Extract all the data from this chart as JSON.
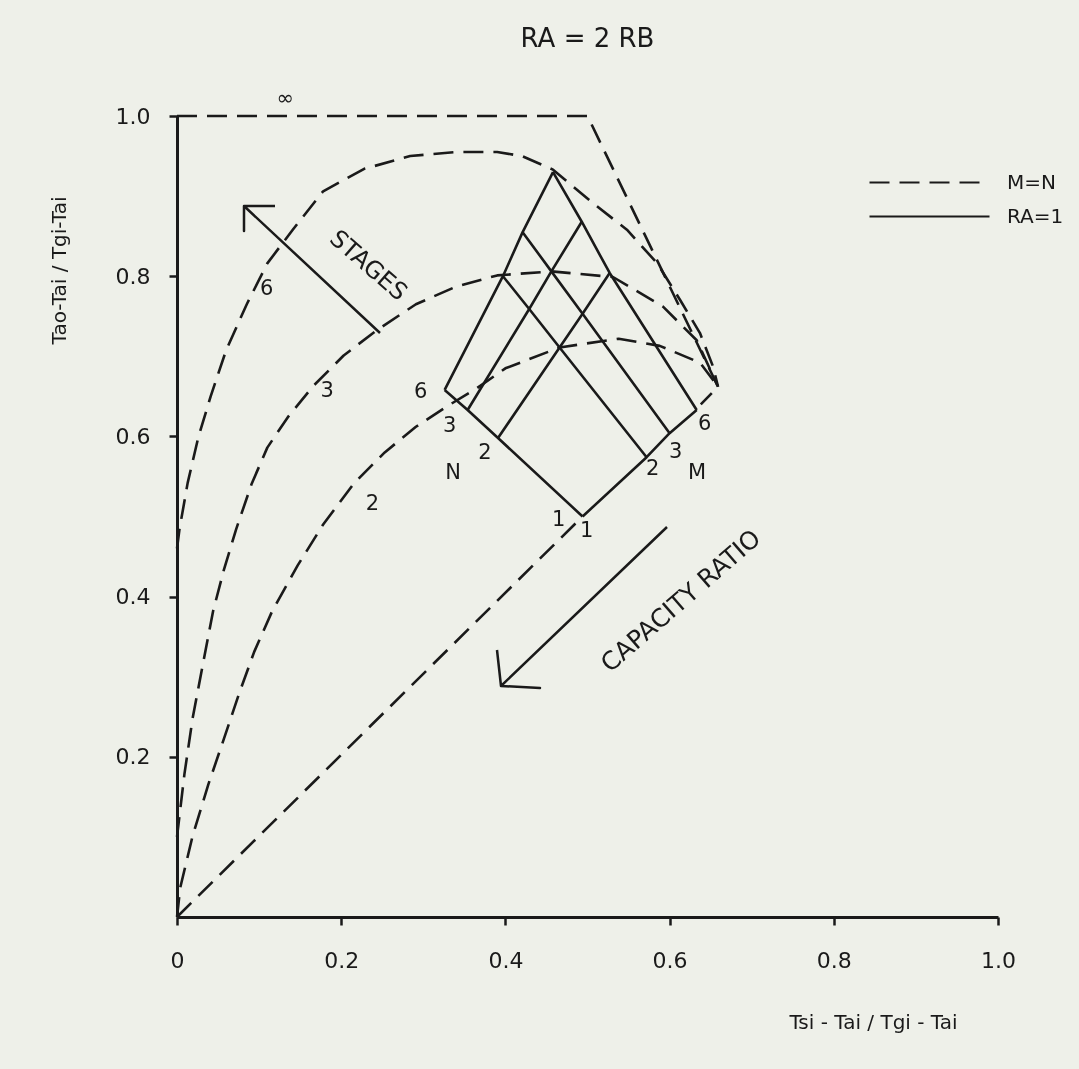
{
  "chart_data": {
    "type": "line",
    "title": "RA = 2 RB",
    "xlabel": "Tsi - Tai / Tgi - Tai",
    "ylabel": "Tao-Tai / Tgi-Tai",
    "xlim": [
      0,
      1.0
    ],
    "ylim": [
      0,
      1.0
    ],
    "xticks": [
      0,
      0.2,
      0.4,
      0.6,
      0.8,
      {
        "value": 1.0,
        "label": "1.0"
      }
    ],
    "yticks": [
      0.2,
      0.4,
      0.6,
      0.8,
      {
        "value": 1.0,
        "label": "1.0"
      }
    ],
    "legend": "top right",
    "series": [
      {
        "name": "M=N",
        "color": "#1a1a1a",
        "line_style": "dashed",
        "x": [
          0,
          0.5,
          0.659,
          0.638
        ],
        "values": [
          1.0,
          1.0,
          0.662,
          0.64
        ]
      },
      {
        "color": "#1a1a1a",
        "line_style": "dashed",
        "x": [
          0,
          0.003,
          0.013,
          0.026,
          0.041,
          0.06,
          0.085,
          0.11,
          0.141,
          0.178,
          0.228,
          0.284,
          0.34,
          0.39,
          0.42,
          0.458,
          0.507,
          0.548,
          0.585,
          0.613,
          0.637,
          0.653,
          0.659
        ],
        "values": [
          0.46,
          0.484,
          0.542,
          0.599,
          0.65,
          0.708,
          0.765,
          0.816,
          0.858,
          0.906,
          0.934,
          0.95,
          0.955,
          0.955,
          0.95,
          0.933,
          0.891,
          0.858,
          0.816,
          0.77,
          0.729,
          0.687,
          0.662
        ]
      },
      {
        "color": "#1a1a1a",
        "line_style": "dashed",
        "x": [
          0,
          0.009,
          0.019,
          0.032,
          0.044,
          0.057,
          0.072,
          0.091,
          0.11,
          0.135,
          0.166,
          0.203,
          0.244,
          0.291,
          0.34,
          0.39,
          0.456,
          0.531,
          0.592,
          0.633,
          0.659
        ],
        "values": [
          0.1,
          0.178,
          0.248,
          0.318,
          0.382,
          0.433,
          0.484,
          0.541,
          0.586,
          0.624,
          0.663,
          0.701,
          0.733,
          0.765,
          0.787,
          0.801,
          0.806,
          0.799,
          0.762,
          0.72,
          0.662
        ]
      },
      {
        "color": "#1a1a1a",
        "line_style": "dashed",
        "x": [
          0,
          0.004,
          0.019,
          0.038,
          0.057,
          0.076,
          0.094,
          0.116,
          0.147,
          0.178,
          0.216,
          0.253,
          0.291,
          0.328,
          0.365,
          0.4,
          0.466,
          0.538,
          0.588,
          0.637,
          0.659
        ],
        "values": [
          0,
          0.037,
          0.101,
          0.165,
          0.222,
          0.28,
          0.331,
          0.382,
          0.439,
          0.49,
          0.542,
          0.58,
          0.612,
          0.637,
          0.66,
          0.685,
          0.711,
          0.722,
          0.713,
          0.692,
          0.662
        ]
      },
      {
        "color": "#1a1a1a",
        "line_style": "dashed",
        "x": [
          0,
          0.494
        ],
        "values": [
          0,
          0.5
        ]
      },
      {
        "name": "RA=1",
        "color": "#1a1a1a",
        "line_style": "solid",
        "x": [
          0.494,
          0.572,
          0.6,
          0.633
        ],
        "values": [
          0.5,
          0.574,
          0.604,
          0.633
        ]
      },
      {
        "color": "#1a1a1a",
        "line_style": "solid",
        "x": [
          0.391,
          0.466,
          0.494,
          0.527
        ],
        "values": [
          0.598,
          0.711,
          0.753,
          0.804
        ]
      },
      {
        "color": "#1a1a1a",
        "line_style": "solid",
        "x": [
          0.354,
          0.429,
          0.456,
          0.493
        ],
        "values": [
          0.633,
          0.759,
          0.806,
          0.868
        ]
      },
      {
        "color": "#1a1a1a",
        "line_style": "solid",
        "x": [
          0.326,
          0.397,
          0.421,
          0.458
        ],
        "values": [
          0.658,
          0.8,
          0.855,
          0.93
        ]
      },
      {
        "color": "#1a1a1a",
        "line_style": "solid",
        "x": [
          0.494,
          0.391,
          0.354,
          0.326
        ],
        "values": [
          0.5,
          0.598,
          0.633,
          0.658
        ]
      },
      {
        "color": "#1a1a1a",
        "line_style": "solid",
        "x": [
          0.572,
          0.466,
          0.429,
          0.397
        ],
        "values": [
          0.574,
          0.711,
          0.759,
          0.8
        ]
      },
      {
        "color": "#1a1a1a",
        "line_style": "solid",
        "x": [
          0.6,
          0.494,
          0.456,
          0.421
        ],
        "values": [
          0.604,
          0.753,
          0.806,
          0.855
        ]
      },
      {
        "color": "#1a1a1a",
        "line_style": "solid",
        "x": [
          0.633,
          0.527,
          0.493,
          0.458
        ],
        "values": [
          0.633,
          0.804,
          0.868,
          0.93
        ]
      }
    ],
    "annotations": [
      {
        "text": "∞",
        "x": 0.132,
        "y": 1.0
      },
      {
        "text": "6",
        "x": 0.085,
        "y": 0.765
      },
      {
        "text": "3",
        "x": 0.166,
        "y": 0.663
      },
      {
        "text": "2",
        "x": 0.216,
        "y": 0.542
      },
      {
        "text": "6",
        "x": 0.326,
        "y": 0.658
      },
      {
        "text": "3",
        "x": 0.354,
        "y": 0.633
      },
      {
        "text": "2",
        "x": 0.391,
        "y": 0.598
      },
      {
        "text": "1",
        "x": 0.494,
        "y": 0.5
      },
      {
        "text": "1",
        "x": 0.494,
        "y": 0.5
      },
      {
        "text": "2",
        "x": 0.572,
        "y": 0.574
      },
      {
        "text": "3",
        "x": 0.6,
        "y": 0.604
      },
      {
        "text": "6",
        "x": 0.633,
        "y": 0.633
      },
      "N",
      "M",
      "STAGES",
      "CAPACITY RATIO"
    ]
  }
}
